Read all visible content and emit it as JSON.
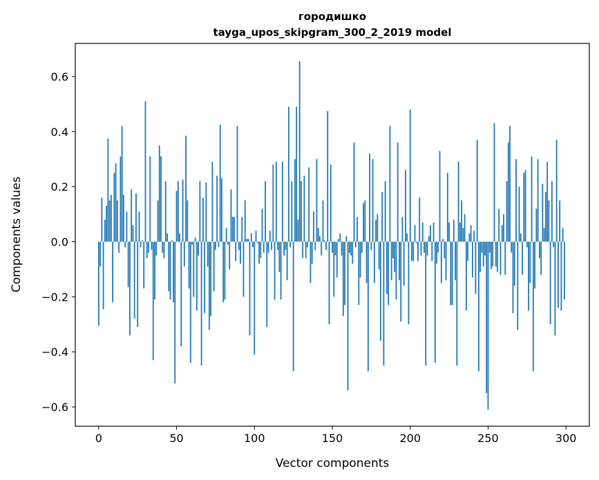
{
  "chart_data": {
    "type": "bar",
    "title": "городишко",
    "subtitle": "tayga_upos_skipgram_300_2_2019 model",
    "xlabel": "Vector components",
    "ylabel": "Components values",
    "xlim": [
      -15,
      315
    ],
    "ylim": [
      -0.67,
      0.72
    ],
    "xticks": [
      0,
      50,
      100,
      150,
      200,
      250,
      300
    ],
    "xtick_labels": [
      "0",
      "50",
      "100",
      "150",
      "200",
      "250",
      "300"
    ],
    "yticks": [
      -0.6,
      -0.4,
      -0.2,
      0.0,
      0.2,
      0.4,
      0.6
    ],
    "ytick_labels": [
      "−0.6",
      "−0.4",
      "−0.2",
      "0.0",
      "0.2",
      "0.4",
      "0.6"
    ],
    "bar_color": "#1f77b4",
    "values": [
      -0.305,
      -0.09,
      0.16,
      -0.245,
      0.08,
      0.13,
      0.375,
      0.15,
      0.17,
      -0.22,
      0.25,
      0.285,
      0.15,
      -0.04,
      0.31,
      0.42,
      0.17,
      -0.02,
      0.11,
      -0.165,
      -0.34,
      0.19,
      0.06,
      -0.28,
      0.175,
      -0.31,
      0.11,
      -0.02,
      0.005,
      -0.17,
      0.51,
      -0.06,
      -0.04,
      0.31,
      -0.03,
      -0.43,
      -0.21,
      -0.05,
      0.15,
      0.35,
      0.31,
      -0.04,
      -0.06,
      0.22,
      0.03,
      -0.18,
      -0.21,
      0.005,
      -0.22,
      -0.515,
      0.185,
      0.22,
      0.03,
      -0.38,
      0.225,
      -0.09,
      0.385,
      0.15,
      -0.17,
      -0.44,
      -0.01,
      -0.2,
      0.015,
      -0.25,
      -0.05,
      0.22,
      -0.45,
      0.16,
      -0.26,
      0.215,
      -0.09,
      -0.32,
      -0.27,
      0.29,
      -0.18,
      -0.03,
      0.24,
      -0.02,
      0.425,
      0.23,
      -0.22,
      -0.21,
      0.05,
      -0.01,
      -0.1,
      0.19,
      0.09,
      0.09,
      -0.07,
      0.42,
      -0.03,
      -0.08,
      0.09,
      -0.2,
      0.15,
      0.01,
      0.01,
      -0.34,
      0.03,
      -0.02,
      -0.41,
      0.04,
      -0.005,
      -0.08,
      -0.06,
      0.12,
      -0.04,
      0.22,
      -0.31,
      -0.04,
      0.04,
      -0.03,
      0.28,
      -0.21,
      0.29,
      -0.03,
      -0.11,
      -0.21,
      0.29,
      -0.05,
      -0.03,
      -0.14,
      0.49,
      -0.02,
      0.22,
      -0.47,
      0.3,
      0.49,
      0.08,
      0.655,
      0.22,
      -0.06,
      0.24,
      -0.06,
      -0.02,
      0.27,
      -0.15,
      -0.08,
      0.11,
      -0.03,
      0.3,
      0.05,
      0.02,
      -0.05,
      0.15,
      0.005,
      -0.03,
      0.475,
      -0.3,
      0.28,
      -0.04,
      -0.2,
      -0.05,
      -0.13,
      0.01,
      0.03,
      -0.05,
      -0.27,
      -0.23,
      0.02,
      -0.54,
      -0.04,
      -0.05,
      -0.08,
      0.36,
      -0.02,
      0.09,
      -0.23,
      -0.13,
      -0.04,
      0.14,
      0.15,
      -0.15,
      -0.47,
      0.32,
      -0.03,
      0.3,
      -0.15,
      0.08,
      0.1,
      -0.1,
      -0.36,
      0.18,
      -0.45,
      0.22,
      -0.19,
      -0.23,
      0.42,
      -0.14,
      -0.06,
      -0.11,
      -0.21,
      0.36,
      -0.14,
      -0.29,
      0.09,
      -0.16,
      0.26,
      0.03,
      -0.3,
      0.48,
      -0.07,
      -0.07,
      0.06,
      -0.005,
      -0.07,
      0.16,
      -0.05,
      0.07,
      -0.04,
      -0.45,
      -0.05,
      0.02,
      0.06,
      -0.07,
      0.07,
      -0.44,
      -0.08,
      -0.04,
      0.33,
      -0.15,
      0.01,
      -0.06,
      -0.14,
      0.25,
      0.07,
      -0.23,
      -0.23,
      0.08,
      -0.14,
      -0.45,
      0.29,
      0.07,
      0.15,
      0.05,
      0.1,
      -0.25,
      -0.07,
      0.03,
      0.06,
      -0.13,
      0.04,
      -0.19,
      0.37,
      -0.47,
      -0.11,
      -0.04,
      -0.09,
      -0.05,
      -0.55,
      -0.61,
      -0.04,
      -0.1,
      -0.09,
      0.43,
      -0.09,
      -0.11,
      0.12,
      -0.12,
      0.06,
      0.1,
      -0.12,
      0.22,
      0.36,
      0.42,
      -0.04,
      -0.26,
      -0.16,
      0.3,
      -0.32,
      0.2,
      0.03,
      -0.12,
      0.25,
      0.26,
      -0.02,
      -0.25,
      -0.15,
      0.31,
      -0.47,
      -0.17,
      0.12,
      0.3,
      -0.06,
      -0.12,
      0.21,
      0.05,
      0.18,
      0.29,
      0.15,
      -0.3,
      0.22,
      -0.02,
      -0.34,
      0.37,
      -0.24,
      0.15,
      -0.25,
      0.05,
      -0.21
    ]
  }
}
